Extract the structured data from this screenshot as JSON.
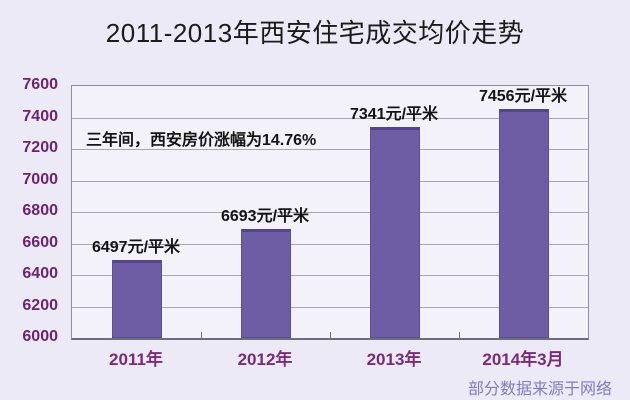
{
  "page": {
    "title": "2011-2013年西安住宅成交均价走势",
    "footer": "部分数据来源于网络"
  },
  "chart_data": {
    "type": "bar",
    "title": "2011-2013年西安住宅成交均价走势",
    "categories": [
      "2011年",
      "2012年",
      "2013年",
      "2014年3月"
    ],
    "values": [
      6497,
      6693,
      7341,
      7456
    ],
    "bar_labels": [
      "6497元/平米",
      "6693元/平米",
      "7341元/平米",
      "7456元/平米"
    ],
    "annotation": "三年间，西安房价涨幅为14.76%",
    "xlabel": "",
    "ylabel": "",
    "ylim": [
      6000,
      7600
    ],
    "yticks": [
      6000,
      6200,
      6400,
      6600,
      6800,
      7000,
      7200,
      7400,
      7600
    ],
    "grid": true,
    "legend": "none",
    "footer": "部分数据来源于网络",
    "colors": {
      "page_background": "#ECEAF7",
      "plot_background": "#F3F2FB",
      "bar_fill": "#6D5DA4",
      "bar_edge": "#54468A",
      "gridline": "#a8a6b6",
      "axis_text": "#6d2371",
      "category_text": "#7a2a7a",
      "title_text": "#1b1b1b",
      "footer_text": "#837ac4"
    }
  }
}
